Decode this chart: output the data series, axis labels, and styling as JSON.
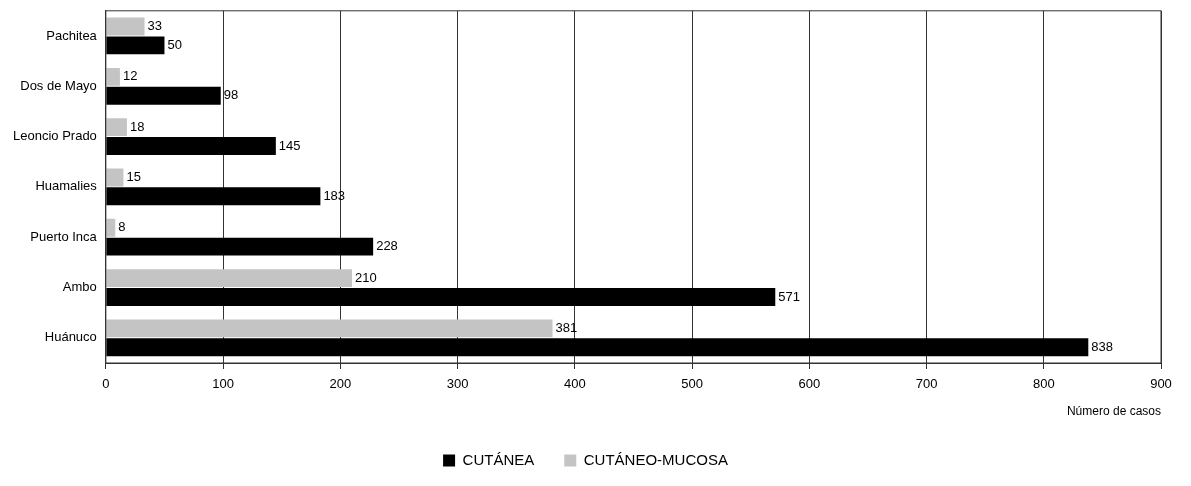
{
  "chart_data": {
    "type": "bar",
    "orientation": "horizontal",
    "xlabel": "Número de casos",
    "categories": [
      "Pachitea",
      "Dos de Mayo",
      "Leoncio Prado",
      "Huamalies",
      "Puerto Inca",
      "Ambo",
      "Huánuco"
    ],
    "series": [
      {
        "name": "CUTÁNEA",
        "color": "#000000",
        "values": [
          50,
          98,
          145,
          183,
          228,
          571,
          838
        ]
      },
      {
        "name": "CUTÁNEO-MUCOSA",
        "color": "#c4c4c4",
        "values": [
          33,
          12,
          18,
          15,
          8,
          210,
          381
        ]
      }
    ],
    "xlim": [
      0,
      900
    ],
    "xticks": [
      0,
      100,
      200,
      300,
      400,
      500,
      600,
      700,
      800,
      900
    ],
    "grid": "x",
    "legend": "bottom",
    "data_labels": true
  }
}
